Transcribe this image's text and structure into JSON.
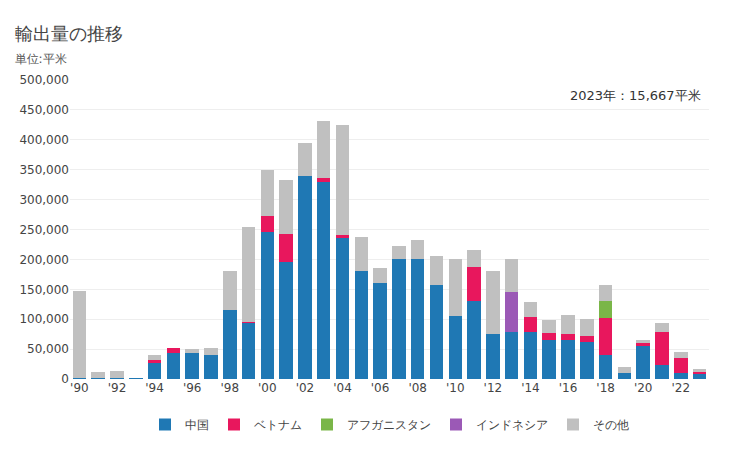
{
  "chart_data": {
    "type": "bar",
    "stacked": true,
    "title": "輸出量の推移",
    "subtitle": "単位:平米",
    "annotation": "2023年：15,667平米",
    "categories": [
      "'90",
      null,
      "'92",
      null,
      "'94",
      null,
      "'96",
      null,
      "'98",
      null,
      "'00",
      null,
      "'02",
      null,
      "'04",
      null,
      "'06",
      null,
      "'08",
      null,
      "'10",
      null,
      "'12",
      null,
      "'14",
      null,
      "'16",
      null,
      "'18",
      null,
      "'20",
      null,
      "'22",
      null
    ],
    "series": [
      {
        "name": "中国",
        "color": "#1f78b4",
        "values": [
          2000,
          2000,
          2000,
          1000,
          27000,
          44000,
          43000,
          40000,
          115000,
          94000,
          245000,
          195000,
          340000,
          330000,
          235000,
          180000,
          160000,
          200000,
          200000,
          157000,
          105000,
          130000,
          75000,
          78000,
          78000,
          65000,
          65000,
          62000,
          40000,
          10000,
          55000,
          24000,
          10000,
          10000
        ]
      },
      {
        "name": "ベトナム",
        "color": "#e8175d",
        "values": [
          0,
          0,
          0,
          0,
          5000,
          8000,
          0,
          0,
          0,
          2000,
          28000,
          48000,
          0,
          6000,
          5000,
          0,
          0,
          0,
          0,
          0,
          0,
          57000,
          0,
          0,
          25000,
          12000,
          10000,
          10000,
          62000,
          0,
          5000,
          55000,
          25000,
          2000
        ]
      },
      {
        "name": "アフガニスタン",
        "color": "#7ab648",
        "values": [
          0,
          0,
          0,
          0,
          0,
          0,
          0,
          0,
          0,
          0,
          0,
          0,
          0,
          0,
          0,
          0,
          0,
          0,
          0,
          0,
          0,
          0,
          0,
          0,
          0,
          0,
          0,
          0,
          28000,
          0,
          0,
          0,
          0,
          0
        ]
      },
      {
        "name": "インドネシア",
        "color": "#9b59b6",
        "values": [
          0,
          0,
          0,
          0,
          0,
          0,
          0,
          0,
          0,
          0,
          0,
          0,
          0,
          0,
          0,
          0,
          0,
          0,
          0,
          0,
          0,
          0,
          0,
          68000,
          0,
          0,
          0,
          0,
          0,
          0,
          0,
          0,
          0,
          0
        ]
      },
      {
        "name": "その他",
        "color": "#c0c0c0",
        "values": [
          145000,
          10000,
          12000,
          0,
          8000,
          0,
          8000,
          12000,
          65000,
          158000,
          77000,
          90000,
          55000,
          95000,
          185000,
          58000,
          25000,
          22000,
          32000,
          48000,
          95000,
          28000,
          105000,
          55000,
          25000,
          22000,
          32000,
          28000,
          28000,
          10000,
          5000,
          15000,
          10000,
          4000
        ]
      }
    ],
    "ylim": [
      0,
      500000
    ],
    "yticks": [
      0,
      {
        "value": 50000,
        "label": "50,000"
      },
      {
        "value": 100000,
        "label": "100,000"
      },
      {
        "value": 150000,
        "label": "150,000"
      },
      {
        "value": 200000,
        "label": "200,000"
      },
      {
        "value": 250000,
        "label": "250,000"
      },
      {
        "value": 300000,
        "label": "300,000"
      },
      {
        "value": 350000,
        "label": "350,000"
      },
      {
        "value": 400000,
        "label": "400,000"
      },
      {
        "value": 450000,
        "label": "450,000"
      },
      {
        "value": 500000,
        "label": "500,000"
      }
    ],
    "grid": true,
    "legend": "bottom"
  }
}
